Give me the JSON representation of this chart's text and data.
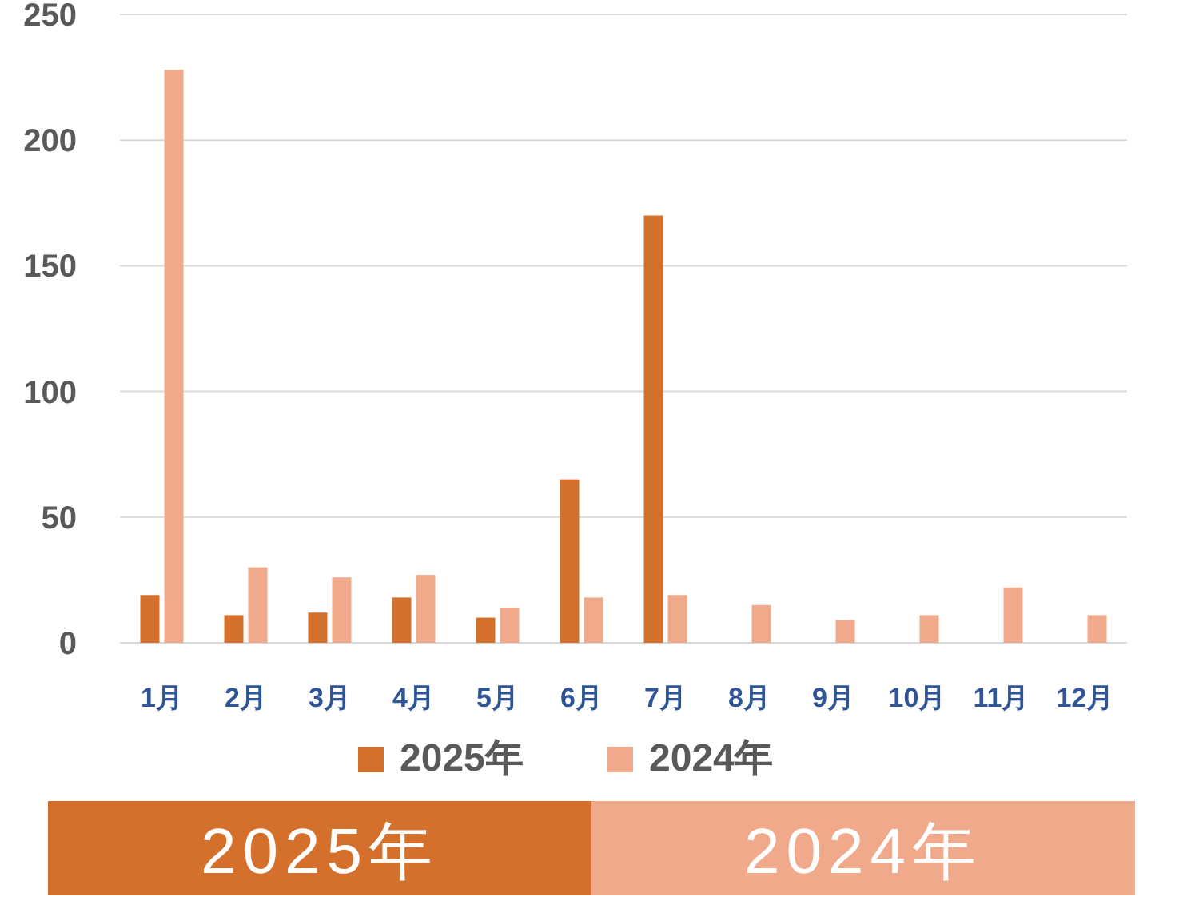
{
  "chart_data": {
    "type": "bar",
    "categories": [
      "1月",
      "2月",
      "3月",
      "4月",
      "5月",
      "6月",
      "7月",
      "8月",
      "9月",
      "10月",
      "11月",
      "12月"
    ],
    "series": [
      {
        "name": "2025年",
        "color": "#d4702b",
        "values": [
          19,
          11,
          12,
          18,
          10,
          65,
          170,
          null,
          null,
          null,
          null,
          null
        ]
      },
      {
        "name": "2024年",
        "color": "#f0a98a",
        "values": [
          228,
          30,
          26,
          27,
          14,
          18,
          19,
          15,
          9,
          11,
          22,
          11
        ]
      }
    ],
    "ylim": [
      0,
      250
    ],
    "yticks": [
      0,
      50,
      100,
      150,
      200,
      250
    ],
    "grid": "y",
    "legend": "bottom",
    "annotations": [
      "2025年",
      "2024年"
    ]
  }
}
